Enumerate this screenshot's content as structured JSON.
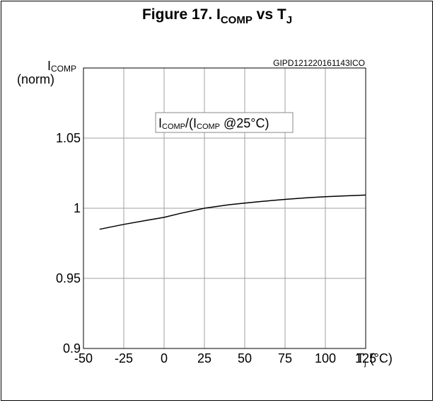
{
  "chart_data": {
    "type": "line",
    "title": {
      "main": "Figure 17. I",
      "sub1": "COMP",
      "mid": " vs T",
      "sub2": "J"
    },
    "code_label": "GIPD121220161143ICO",
    "ylabel": {
      "main": "I",
      "sub": "COMP",
      "line2": "(norm)"
    },
    "xlabel": {
      "main": "T",
      "sub": "j",
      "rest": " (°C)"
    },
    "annotation": {
      "p1": "I",
      "s1": "COMP",
      "p2": "/(I",
      "s2": "COMP",
      "p3": " @25°C)"
    },
    "xlim": [
      -50,
      125
    ],
    "ylim": [
      0.9,
      1.1
    ],
    "x_ticks": [
      {
        "value": -50,
        "label": "-50"
      },
      {
        "value": -25,
        "label": "-25"
      },
      {
        "value": 0,
        "label": "0"
      },
      {
        "value": 25,
        "label": "25"
      },
      {
        "value": 50,
        "label": "50"
      },
      {
        "value": 75,
        "label": "75"
      },
      {
        "value": 100,
        "label": "100"
      },
      {
        "value": 125,
        "label": "125"
      }
    ],
    "y_ticks": [
      {
        "value": 0.9,
        "label": "0.9"
      },
      {
        "value": 0.95,
        "label": "0.95"
      },
      {
        "value": 1.0,
        "label": "1"
      },
      {
        "value": 1.05,
        "label": "1.05"
      }
    ],
    "grid": true,
    "series": [
      {
        "x": [
          -40,
          -25,
          -10,
          0,
          10,
          25,
          40,
          50,
          60,
          75,
          90,
          100,
          110,
          125
        ],
        "y": [
          0.985,
          0.9885,
          0.9915,
          0.9935,
          0.9963,
          1.0,
          1.0025,
          1.0037,
          1.0048,
          1.0063,
          1.0076,
          1.0082,
          1.0087,
          1.0094
        ]
      }
    ],
    "colors": {
      "line": "#000000",
      "grid": "#a0a0a0"
    }
  }
}
